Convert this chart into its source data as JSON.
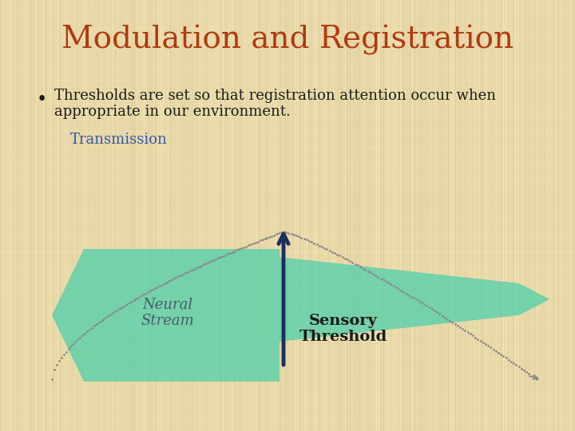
{
  "title": "Modulation and Registration",
  "title_color": "#B03A10",
  "title_fontsize": 28,
  "title_fontstyle": "normal",
  "bullet_text_line1": "Thresholds are set so that registration attention occur when",
  "bullet_text_line2": "appropriate in our environment.",
  "bullet_fontsize": 13,
  "bullet_color": "#1a1a1a",
  "transmission_label": "Transmission",
  "transmission_color": "#3355AA",
  "transmission_fontsize": 13,
  "neural_stream_label": "Neural\nStream",
  "neural_stream_color": "#4a5a6a",
  "neural_stream_fontsize": 13,
  "sensory_threshold_label": "Sensory\nThreshold",
  "sensory_threshold_color": "#1a1a1a",
  "sensory_threshold_fontsize": 13,
  "teal_color": "#4DCFAA",
  "teal_alpha": 0.75,
  "arrow_color": "#1a3060",
  "dot_color": "#888888",
  "background_color": "#E8D8A8"
}
